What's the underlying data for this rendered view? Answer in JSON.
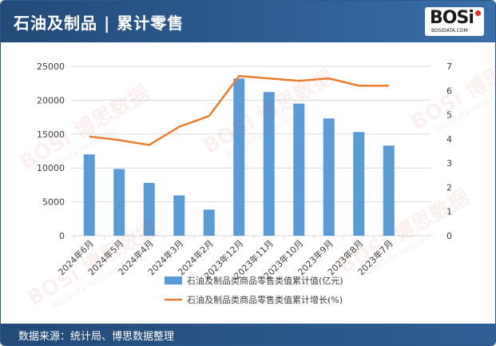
{
  "header": {
    "title": "石油及制品 | 累计零售"
  },
  "logo": {
    "text": "BOSi",
    "subtext": "BOSIDATA.COM"
  },
  "footer": {
    "source": "数据来源：统计局、博思数据整理"
  },
  "watermark": {
    "brand": "博思数据",
    "brand_en": "BosiData Research",
    "logo": "BOSi"
  },
  "colors": {
    "header_bg": "#2d5a8c",
    "bar": "#5b9bd5",
    "line": "#ed7d31",
    "grid": "#d9d9d9",
    "axis_text": "#404040"
  },
  "chart_data": {
    "type": "bar",
    "categories": [
      "2024年6月",
      "2024年5月",
      "2024年4月",
      "2024年3月",
      "2024年2月",
      "2023年12月",
      "2023年11月",
      "2023年10月",
      "2023年9月",
      "2023年8月",
      "2023年7月"
    ],
    "series": [
      {
        "name": "石油及制品类商品零售类值累计值(亿元)",
        "type": "bar",
        "axis": "left",
        "values": [
          12000,
          9850,
          7800,
          5950,
          3850,
          23200,
          21200,
          19500,
          17300,
          15300,
          13300
        ]
      },
      {
        "name": "石油及制品类商品零售类值累计增长(%)",
        "type": "line",
        "axis": "right",
        "values": [
          4.1,
          3.95,
          3.75,
          4.5,
          4.95,
          6.6,
          6.5,
          6.4,
          6.5,
          6.2,
          6.2
        ]
      }
    ],
    "y_left": {
      "min": 0,
      "max": 25000,
      "ticks": [
        0,
        5000,
        10000,
        15000,
        20000,
        25000
      ]
    },
    "y_right": {
      "min": 0,
      "max": 7,
      "ticks": [
        0,
        1,
        2,
        3,
        4,
        5,
        6,
        7
      ]
    },
    "grid": true,
    "legend_position": "bottom"
  }
}
